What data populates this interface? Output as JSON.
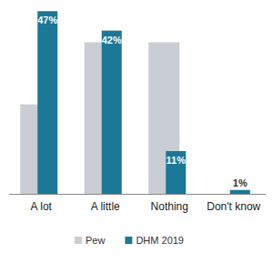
{
  "chart_data": {
    "type": "bar",
    "categories": [
      "A lot",
      "A little",
      "Nothing",
      "Don't know"
    ],
    "series": [
      {
        "name": "Pew",
        "color": "#c8ced4",
        "values": [
          23,
          39,
          39,
          0
        ]
      },
      {
        "name": "DHM 2019",
        "color": "#1b7896",
        "values": [
          47,
          42,
          11,
          1
        ],
        "value_labels": [
          "47%",
          "42%",
          "11%",
          "1%"
        ],
        "data_labels": true
      }
    ],
    "ylim": [
      0,
      48
    ],
    "tick_labels": "x",
    "legend": "bottom",
    "grid": false
  }
}
